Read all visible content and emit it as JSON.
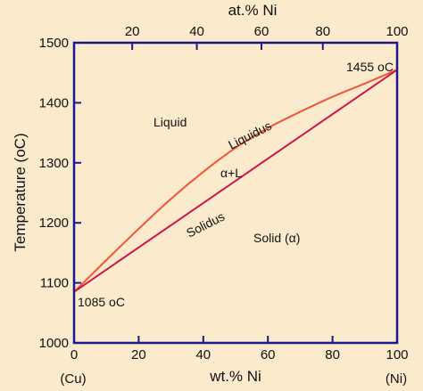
{
  "colors": {
    "background": "#fbeacc",
    "frame": "#1a1a8c",
    "liquidus": "#f0553a",
    "solidus": "#d0134a"
  },
  "chart_data": {
    "type": "line",
    "xlabel": "wt.% Ni",
    "ylabel": "Temperature (oC)",
    "top_axis_label": "at.% Ni",
    "xlim": [
      0,
      100
    ],
    "ylim": [
      1000,
      1500
    ],
    "x_ticks": [
      "0",
      "20",
      "40",
      "60",
      "80",
      "100"
    ],
    "y_ticks": [
      "1000",
      "1100",
      "1200",
      "1300",
      "1400",
      "1500"
    ],
    "top_ticks": [
      "20",
      "40",
      "60",
      "80",
      "100"
    ],
    "top_tick_positions_wt": [
      18,
      38,
      58,
      77,
      100
    ],
    "x_end_labels": {
      "left": "(Cu)",
      "right": "(Ni)"
    },
    "grid": false,
    "series": [
      {
        "name": "Liquidus",
        "x": [
          0,
          10,
          20,
          30,
          40,
          50,
          60,
          70,
          80,
          90,
          100
        ],
        "y": [
          1085,
          1138,
          1190,
          1240,
          1285,
          1325,
          1358,
          1385,
          1410,
          1432,
          1455
        ]
      },
      {
        "name": "Solidus",
        "x": [
          0,
          10,
          20,
          30,
          40,
          50,
          60,
          70,
          80,
          90,
          100
        ],
        "y": [
          1085,
          1122,
          1159,
          1196,
          1233,
          1270,
          1307,
          1344,
          1381,
          1418,
          1455
        ]
      }
    ],
    "annotations": {
      "liquid": "Liquid",
      "liquidus": "Liquidus",
      "two_phase": "α+L",
      "solidus": "Solidus",
      "solid": "Solid (α)",
      "ni_melting": "1455 oC",
      "cu_melting": "1085 oC"
    }
  }
}
